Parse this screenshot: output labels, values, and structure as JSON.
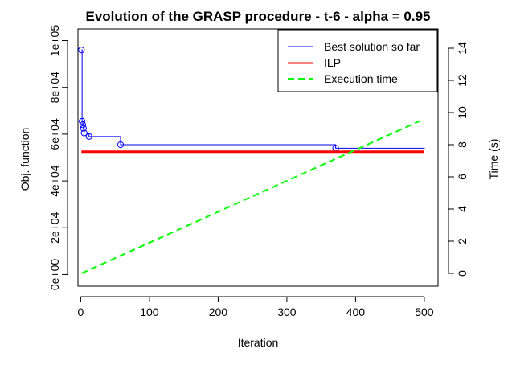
{
  "chart_data": {
    "type": "line",
    "title": "Evolution of the GRASP procedure - t-6 - alpha = 0.95",
    "xlabel": "Iteration",
    "ylabel": "Obj. function",
    "y2label": "Time (s)",
    "xlim": [
      -4,
      520
    ],
    "ylim": [
      -5000,
      105000
    ],
    "y2lim": [
      -0.8,
      15.2
    ],
    "x_ticks": [
      0,
      100,
      200,
      300,
      400,
      500
    ],
    "y_ticks": [
      {
        "value": 0,
        "label": "0e+00"
      },
      {
        "value": 20000,
        "label": "2e+04"
      },
      {
        "value": 40000,
        "label": "4e+04"
      },
      {
        "value": 60000,
        "label": "6e+04"
      },
      {
        "value": 80000,
        "label": "8e+04"
      },
      {
        "value": 100000,
        "label": "1e+05"
      }
    ],
    "y2_ticks": [
      0,
      2,
      4,
      6,
      8,
      10,
      12,
      14
    ],
    "grid": false,
    "legend_position": "top-right",
    "series": [
      {
        "name": "Best solution so far",
        "color": "#0000ff",
        "style": "step",
        "axis": "left",
        "x": [
          1,
          2,
          3,
          4,
          5,
          12,
          58,
          371,
          500
        ],
        "y": [
          96000,
          65500,
          64000,
          62500,
          60500,
          59000,
          55500,
          54000,
          53800
        ],
        "markers_x": [
          1,
          2,
          3,
          4,
          5,
          12,
          58,
          371
        ],
        "markers_y": [
          96000,
          65500,
          64000,
          62500,
          60500,
          59000,
          55500,
          54000
        ]
      },
      {
        "name": "ILP",
        "color": "#ff0000",
        "style": "solid",
        "axis": "left",
        "x": [
          1,
          500
        ],
        "y": [
          52500,
          52500
        ]
      },
      {
        "name": "Execution time",
        "color": "#00ff00",
        "style": "dashed",
        "axis": "right",
        "x": [
          1,
          500
        ],
        "y": [
          0,
          9.6
        ]
      }
    ]
  }
}
